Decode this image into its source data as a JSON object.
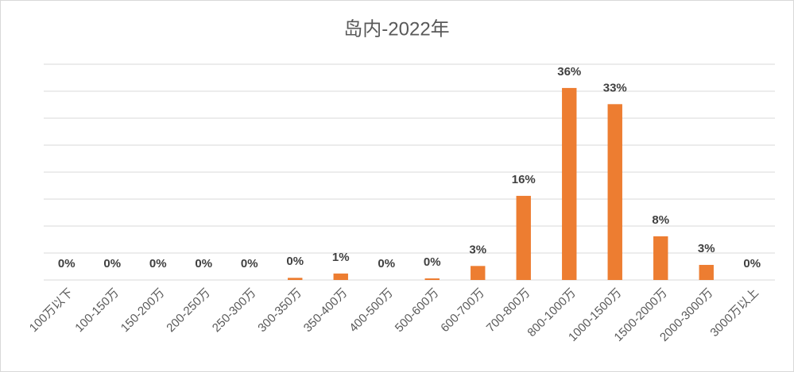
{
  "chart_data": {
    "type": "bar",
    "title": "岛内-2022年",
    "categories": [
      "100万以下",
      "100-150万",
      "150-200万",
      "200-250万",
      "250-300万",
      "300-350万",
      "350-400万",
      "400-500万",
      "500-600万",
      "600-700万",
      "700-800万",
      "800-1000万",
      "1000-1500万",
      "1500-2000万",
      "2000-3000万",
      "3000万以上"
    ],
    "values": [
      0,
      0,
      0,
      0,
      0,
      0.4,
      1.2,
      0,
      0.3,
      2.6,
      15.6,
      35.6,
      32.6,
      8.1,
      2.8,
      0
    ],
    "value_labels": [
      "0%",
      "0%",
      "0%",
      "0%",
      "0%",
      "0%",
      "1%",
      "0%",
      "0%",
      "3%",
      "16%",
      "36%",
      "33%",
      "8%",
      "3%",
      "0%"
    ],
    "color": "#ed7d31",
    "ylim": [
      0,
      40
    ],
    "yticks": [
      0,
      5,
      10,
      15,
      20,
      25,
      30,
      35,
      40
    ],
    "grid": true
  }
}
